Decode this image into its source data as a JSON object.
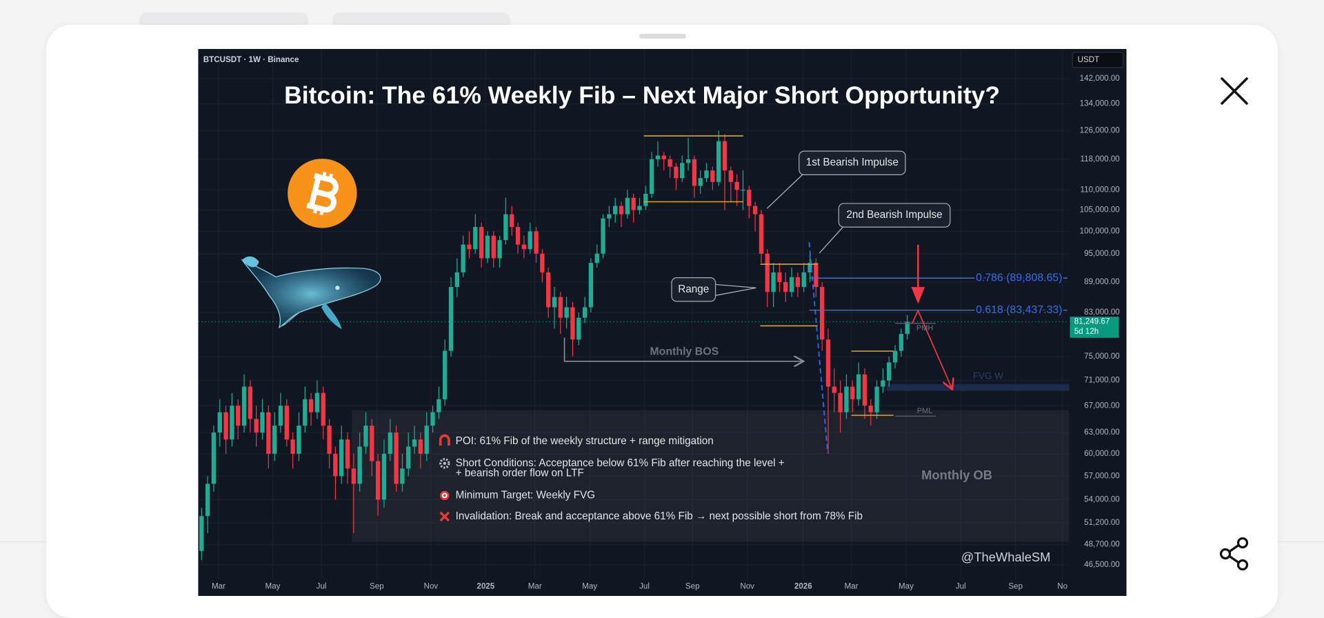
{
  "chart_data": {
    "type": "candlestick",
    "title": "Bitcoin: The 61% Weekly Fib – Next Major Short Opportunity?",
    "symbol": "BTCUSDT · 1W · Binance",
    "currency": "USDT",
    "up_color": "#22ab94",
    "down_color": "#f23645",
    "log_scale": true,
    "grid": true,
    "ylim": [
      45000,
      152000
    ],
    "yticks": [
      {
        "value": 142000,
        "label": "142,000.00"
      },
      {
        "value": 134000,
        "label": "134,000.00"
      },
      {
        "value": 126000,
        "label": "126,000.00"
      },
      {
        "value": 118000,
        "label": "118,000.00"
      },
      {
        "value": 110000,
        "label": "110,000.00"
      },
      {
        "value": 105000,
        "label": "105,000.00"
      },
      {
        "value": 100000,
        "label": "100,000.00"
      },
      {
        "value": 95000,
        "label": "95,000.00"
      },
      {
        "value": 89000,
        "label": "89,000.00"
      },
      {
        "value": 83000,
        "label": "83,000.00"
      },
      {
        "value": 75000,
        "label": "75,000.00"
      },
      {
        "value": 71000,
        "label": "71,000.00"
      },
      {
        "value": 67000,
        "label": "67,000.00"
      },
      {
        "value": 63000,
        "label": "63,000.00"
      },
      {
        "value": 60000,
        "label": "60,000.00"
      },
      {
        "value": 57000,
        "label": "57,000.00"
      },
      {
        "value": 54000,
        "label": "54,000.00"
      },
      {
        "value": 51200,
        "label": "51,200.00"
      },
      {
        "value": 48700,
        "label": "48,700.00"
      },
      {
        "value": 46500,
        "label": "46,500.00"
      }
    ],
    "xlim": [
      -0.55,
      142.6
    ],
    "xticks": [
      {
        "value": 2.8,
        "label": "Mar"
      },
      {
        "value": 11.7,
        "label": "May"
      },
      {
        "value": 19.7,
        "label": "Jul"
      },
      {
        "value": 28.8,
        "label": "Sep"
      },
      {
        "value": 37.7,
        "label": "Nov"
      },
      {
        "value": 46.7,
        "label": "2025"
      },
      {
        "value": 54.8,
        "label": "Mar"
      },
      {
        "value": 63.8,
        "label": "May"
      },
      {
        "value": 72.8,
        "label": "Jul"
      },
      {
        "value": 80.7,
        "label": "Sep"
      },
      {
        "value": 89.7,
        "label": "Nov"
      },
      {
        "value": 98.9,
        "label": "2026"
      },
      {
        "value": 106.8,
        "label": "Mar"
      },
      {
        "value": 115.8,
        "label": "May"
      },
      {
        "value": 124.8,
        "label": "Jul"
      },
      {
        "value": 133.8,
        "label": "Sep"
      },
      {
        "value": 141.5,
        "label": "No"
      }
    ],
    "candles": [
      [
        48000,
        53000,
        47000,
        52000
      ],
      [
        52000,
        57000,
        50000,
        56000
      ],
      [
        56000,
        64000,
        55000,
        63000
      ],
      [
        63000,
        68000,
        61000,
        66000
      ],
      [
        66000,
        67000,
        60000,
        62000
      ],
      [
        62000,
        69000,
        61000,
        67000
      ],
      [
        67000,
        68000,
        62000,
        64000
      ],
      [
        64000,
        72000,
        63000,
        70000
      ],
      [
        70000,
        71000,
        63000,
        65000
      ],
      [
        65000,
        67000,
        61000,
        63000
      ],
      [
        63000,
        68000,
        62000,
        66000
      ],
      [
        66000,
        67000,
        58000,
        60000
      ],
      [
        60000,
        66000,
        59000,
        64000
      ],
      [
        64000,
        69000,
        63000,
        67000
      ],
      [
        67000,
        68000,
        61000,
        62000
      ],
      [
        62000,
        63000,
        58000,
        60000
      ],
      [
        60000,
        66000,
        59000,
        64000
      ],
      [
        64000,
        70000,
        63000,
        68000
      ],
      [
        68000,
        69000,
        64000,
        66000
      ],
      [
        66000,
        71000,
        65000,
        69000
      ],
      [
        69000,
        70000,
        62000,
        64000
      ],
      [
        64000,
        65000,
        58000,
        60000
      ],
      [
        60000,
        61000,
        54000,
        57000
      ],
      [
        57000,
        64000,
        56000,
        62000
      ],
      [
        62000,
        63000,
        56000,
        58000
      ],
      [
        58000,
        60000,
        50000,
        56000
      ],
      [
        56000,
        63000,
        55000,
        61000
      ],
      [
        61000,
        66000,
        60000,
        64000
      ],
      [
        64000,
        65000,
        57000,
        59000
      ],
      [
        59000,
        60000,
        52000,
        54000
      ],
      [
        54000,
        62000,
        53000,
        60000
      ],
      [
        60000,
        65000,
        59000,
        63000
      ],
      [
        63000,
        64000,
        55000,
        56000
      ],
      [
        56000,
        60000,
        55000,
        58000
      ],
      [
        58000,
        63000,
        57000,
        61000
      ],
      [
        61000,
        64000,
        60000,
        62000
      ],
      [
        62000,
        63000,
        58000,
        60000
      ],
      [
        60000,
        66000,
        59000,
        64000
      ],
      [
        64000,
        67000,
        63000,
        66000
      ],
      [
        66000,
        70000,
        65000,
        68000
      ],
      [
        68000,
        78000,
        67000,
        76000
      ],
      [
        76000,
        90000,
        75000,
        88000
      ],
      [
        88000,
        94000,
        86000,
        91000
      ],
      [
        91000,
        99000,
        90000,
        97000
      ],
      [
        97000,
        100000,
        94000,
        96000
      ],
      [
        96000,
        104000,
        95000,
        101000
      ],
      [
        101000,
        102000,
        92000,
        94000
      ],
      [
        94000,
        100000,
        93000,
        99000
      ],
      [
        99000,
        100000,
        92000,
        94000
      ],
      [
        94000,
        99000,
        92000,
        98000
      ],
      [
        98000,
        108000,
        97000,
        104000
      ],
      [
        104000,
        106000,
        99000,
        101000
      ],
      [
        101000,
        102000,
        95000,
        97000
      ],
      [
        97000,
        99000,
        94000,
        96000
      ],
      [
        96000,
        102000,
        95000,
        100000
      ],
      [
        100000,
        101000,
        93000,
        95000
      ],
      [
        95000,
        96000,
        89000,
        91000
      ],
      [
        91000,
        92000,
        82000,
        84000
      ],
      [
        84000,
        88000,
        80000,
        86000
      ],
      [
        86000,
        87000,
        79000,
        82000
      ],
      [
        82000,
        86000,
        80000,
        84000
      ],
      [
        84000,
        85000,
        75000,
        78000
      ],
      [
        78000,
        83000,
        77000,
        82000
      ],
      [
        82000,
        86000,
        81000,
        84000
      ],
      [
        84000,
        94000,
        83000,
        93000
      ],
      [
        93000,
        97000,
        92000,
        95000
      ],
      [
        95000,
        104000,
        94000,
        103000
      ],
      [
        103000,
        106000,
        101000,
        104000
      ],
      [
        104000,
        108000,
        102000,
        106000
      ],
      [
        106000,
        107000,
        101000,
        104000
      ],
      [
        104000,
        110000,
        103000,
        108000
      ],
      [
        108000,
        109000,
        102000,
        105000
      ],
      [
        105000,
        108000,
        104000,
        106000
      ],
      [
        106000,
        111000,
        105000,
        109000
      ],
      [
        109000,
        120000,
        108000,
        118000
      ],
      [
        118000,
        123000,
        116000,
        119000
      ],
      [
        119000,
        120000,
        115000,
        118000
      ],
      [
        118000,
        119000,
        113000,
        116000
      ],
      [
        116000,
        117000,
        110000,
        113000
      ],
      [
        113000,
        119000,
        112000,
        117000
      ],
      [
        117000,
        124000,
        115000,
        118000
      ],
      [
        118000,
        119000,
        108000,
        111000
      ],
      [
        111000,
        115000,
        109000,
        113000
      ],
      [
        113000,
        117000,
        112000,
        115000
      ],
      [
        115000,
        116000,
        110000,
        112000
      ],
      [
        112000,
        126000,
        111000,
        123000
      ],
      [
        123000,
        125000,
        105000,
        115000
      ],
      [
        115000,
        116000,
        107000,
        112000
      ],
      [
        112000,
        114000,
        106000,
        110000
      ],
      [
        110000,
        115000,
        105000,
        110000
      ],
      [
        110000,
        111000,
        103000,
        106000
      ],
      [
        106000,
        107000,
        100000,
        104000
      ],
      [
        104000,
        105000,
        93000,
        95000
      ],
      [
        95000,
        96000,
        84000,
        87000
      ],
      [
        87000,
        93000,
        84000,
        91000
      ],
      [
        91000,
        93000,
        87000,
        89000
      ],
      [
        89000,
        91000,
        85000,
        87000
      ],
      [
        87000,
        92000,
        86000,
        90000
      ],
      [
        90000,
        91000,
        86000,
        88000
      ],
      [
        88000,
        93000,
        87000,
        91000
      ],
      [
        91000,
        95000,
        89000,
        93000
      ],
      [
        93000,
        94000,
        86000,
        88000
      ],
      [
        88000,
        89000,
        76000,
        78000
      ],
      [
        78000,
        80000,
        60000,
        70000
      ],
      [
        70000,
        73000,
        66000,
        69000
      ],
      [
        69000,
        71000,
        63000,
        66000
      ],
      [
        66000,
        72000,
        65000,
        70000
      ],
      [
        70000,
        71000,
        66000,
        68000
      ],
      [
        68000,
        74000,
        67000,
        72000
      ],
      [
        72000,
        73000,
        65000,
        67000
      ],
      [
        67000,
        68000,
        64000,
        66000
      ],
      [
        66000,
        71000,
        65000,
        70000
      ],
      [
        70000,
        73000,
        69000,
        71000
      ],
      [
        71000,
        75000,
        70000,
        74000
      ],
      [
        74000,
        77000,
        73000,
        76000
      ],
      [
        76000,
        80000,
        75000,
        79000
      ],
      [
        79000,
        82500,
        78000,
        81249.67
      ]
    ],
    "last_price": {
      "value": 81249.67,
      "label": "81,249.67"
    },
    "last_price_color": "#089981",
    "countdown": "5d 12h",
    "fib_levels": [
      {
        "value": 89808.65,
        "label": "0.786 (89,808.65)"
      },
      {
        "value": 83437.33,
        "label": "0.618 (83,437.33)"
      }
    ],
    "fib_color": "#3a6df0",
    "annotations": {
      "impulse_1": "1st Bearish Impulse",
      "impulse_2": "2nd Bearish Impulse",
      "range": "Range",
      "bos": "Monthly BOS",
      "fvg": "FVG W",
      "pmh": "PMH",
      "pml": "PML",
      "ob": "Monthly OB",
      "author": "@TheWhaleSM"
    },
    "notes": [
      "POI: 61% Fib of the weekly structure + range mitigation",
      "Short Conditions: Acceptance below 61% Fib after reaching the level +",
      "+ bearish order flow on LTF",
      "Minimum Target: Weekly FVG",
      "Invalidation: Break and acceptance above 61% Fib → next possible short from 78% Fib"
    ]
  }
}
